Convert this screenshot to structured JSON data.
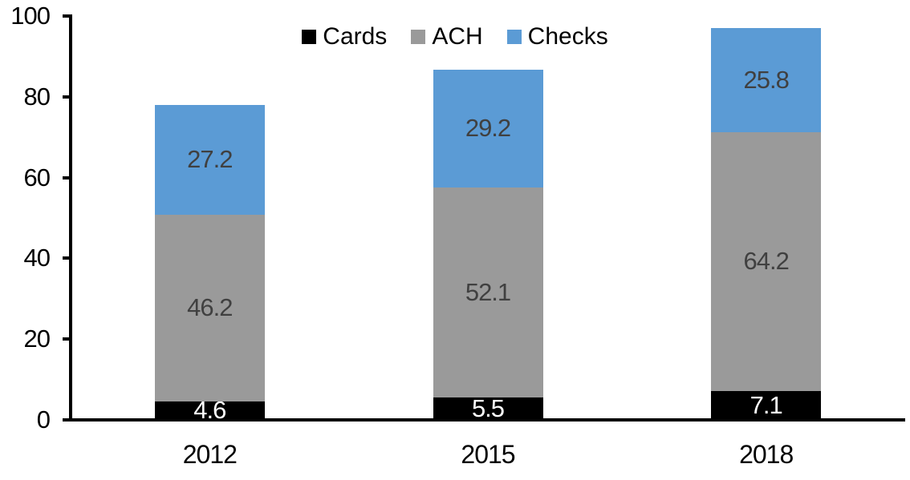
{
  "chart_data": {
    "type": "bar",
    "stacked": true,
    "title": "",
    "xlabel": "",
    "ylabel": "",
    "categories": [
      "2012",
      "2015",
      "2018"
    ],
    "series": [
      {
        "name": "Cards",
        "values": [
          4.6,
          5.5,
          7.1
        ],
        "color": "#000000",
        "label_color": "#FFFFFF"
      },
      {
        "name": "ACH",
        "values": [
          46.2,
          52.1,
          64.2
        ],
        "color": "#9A9A9A",
        "label_color": "#404040"
      },
      {
        "name": "Checks",
        "values": [
          27.2,
          29.2,
          25.8
        ],
        "color": "#5B9BD5",
        "label_color": "#404040"
      }
    ],
    "totals": [
      78.0,
      86.8,
      97.1
    ],
    "ylim": [
      0,
      100
    ],
    "yticks": [
      0,
      20,
      40,
      60,
      80,
      100
    ],
    "grid": false,
    "legend_position": "top",
    "axis_color": "#000000",
    "background": "#FFFFFF",
    "data_labels": true
  }
}
